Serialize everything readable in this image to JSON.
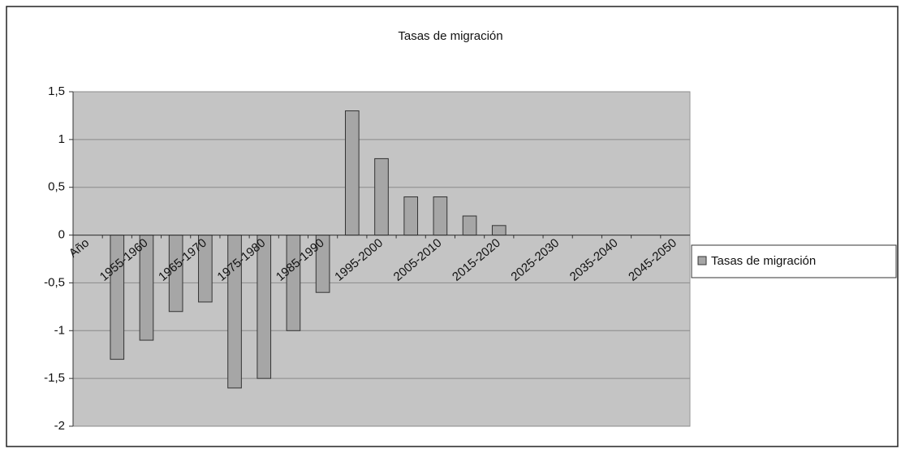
{
  "chart_data": {
    "type": "bar",
    "title": "Tasas de migración",
    "categories": [
      "Año",
      null,
      "1955-1960",
      null,
      "1965-1970",
      null,
      "1975-1980",
      null,
      "1985-1990",
      null,
      "1995-2000",
      null,
      "2005-2010",
      null,
      "2015-2020",
      null,
      "2025-2030",
      null,
      "2035-2040",
      null,
      "2045-2050"
    ],
    "series": [
      {
        "name": "Tasas de migración",
        "color": "#a6a6a6",
        "values": [
          null,
          -1.3,
          -1.1,
          -0.8,
          -0.7,
          -1.6,
          -1.5,
          -1.0,
          -0.6,
          1.3,
          0.8,
          0.4,
          0.4,
          0.2,
          0.1,
          null,
          null,
          null,
          null,
          null,
          null
        ]
      }
    ],
    "ylim": [
      -2,
      1.5
    ],
    "yticks": [
      {
        "value": -2,
        "label": "-2"
      },
      {
        "value": -1.5,
        "label": "-1,5"
      },
      {
        "value": -1,
        "label": "-1"
      },
      {
        "value": -0.5,
        "label": "-0,5"
      },
      0,
      {
        "value": 0.5,
        "label": "0,5"
      },
      1,
      {
        "value": 1.5,
        "label": "1,5"
      }
    ],
    "grid": true,
    "legend": "right"
  }
}
